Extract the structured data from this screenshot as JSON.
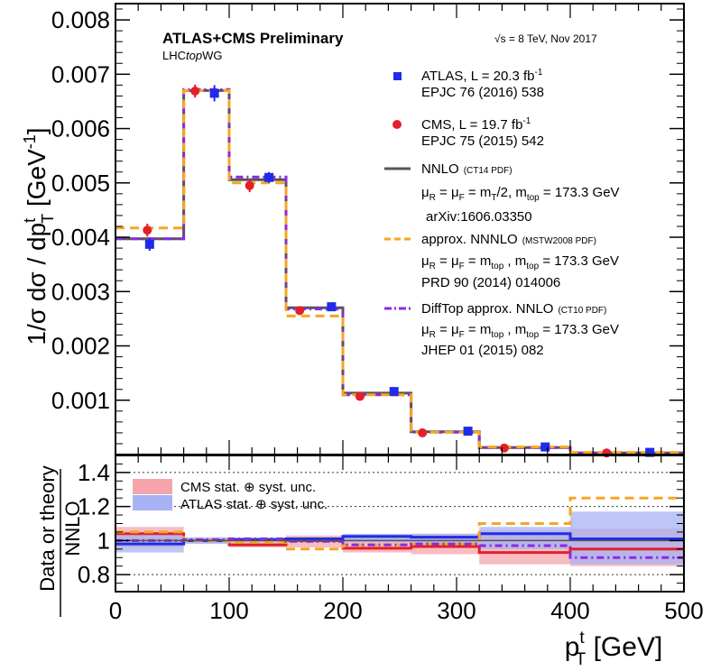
{
  "chart_data": [
    {
      "type": "line",
      "panel": "main",
      "header": {
        "experiment": "ATLAS+CMS Preliminary",
        "group_prefix": "LHC",
        "group_italic": "top",
        "group_suffix": "WG",
        "energy_prefix": "√s",
        "energy_text": " = 8 TeV, Nov 2017"
      },
      "ylabel": "1/σ dσ / dp",
      "ylabel_sub": "T",
      "ylabel_sup": "t",
      "ylabel_unit": " [GeV",
      "ylabel_unit_sup": "-1",
      "ylabel_close": "]",
      "ylim": [
        0,
        0.0083
      ],
      "yticks": [
        0.001,
        0.002,
        0.003,
        0.004,
        0.005,
        0.006,
        0.007,
        0.008
      ],
      "ytick_labels": [
        "0.001",
        "0.002",
        "0.003",
        "0.004",
        "0.005",
        "0.006",
        "0.007",
        "0.008"
      ],
      "xlim": [
        0,
        500
      ],
      "bin_edges": [
        0,
        60,
        100,
        150,
        200,
        260,
        320,
        400,
        500
      ],
      "series": [
        {
          "name": "ATLAS",
          "kind": "points",
          "marker": "square",
          "color": "#1f2be8",
          "x": [
            30,
            87,
            135,
            190,
            245,
            310,
            378,
            470
          ],
          "y": [
            0.00387,
            0.00665,
            0.0051,
            0.00272,
            0.00116,
            0.00043,
            0.00014,
            4e-05
          ],
          "err": [
            0.00012,
            0.00015,
            0.0001,
            5e-05,
            3e-05,
            2e-05,
            1e-05,
            5e-06
          ]
        },
        {
          "name": "CMS",
          "kind": "points",
          "marker": "circle",
          "color": "#e3202a",
          "x": [
            28,
            70,
            118,
            162,
            215,
            270,
            342,
            432
          ],
          "y": [
            0.00413,
            0.00669,
            0.00495,
            0.00265,
            0.00107,
            0.0004,
            0.00012,
            3e-05
          ],
          "err": [
            0.00012,
            0.00012,
            0.00012,
            7e-05,
            3e-05,
            2e-05,
            1e-05,
            5e-06
          ]
        },
        {
          "name": "NNLO",
          "kind": "step",
          "color": "#555555",
          "dash": "",
          "values": [
            0.00397,
            0.0067,
            0.00506,
            0.0027,
            0.00113,
            0.00042,
            0.00013,
            3e-05
          ]
        },
        {
          "name": "approx. NNNLO",
          "kind": "step",
          "color": "#f5a623",
          "dash": "10,6",
          "values": [
            0.00417,
            0.0067,
            0.005,
            0.00255,
            0.0011,
            0.00041,
            0.00014,
            4e-05
          ]
        },
        {
          "name": "DiffTop approx. NNLO",
          "kind": "step",
          "color": "#8a2be2",
          "dash": "8,4,2,4",
          "values": [
            0.00397,
            0.00672,
            0.00511,
            0.00268,
            0.0011,
            0.00041,
            0.00013,
            3e-05
          ]
        }
      ],
      "legend": [
        {
          "line1": "ATLAS, L = 20.3 fb",
          "line1_sup": "-1",
          "line2": "EPJC 76 (2016) 538"
        },
        {
          "line1": "CMS, L = 19.7 fb",
          "line1_sup": "-1",
          "line2": "EPJC 75 (2015) 542"
        },
        {
          "line1": "NNLO",
          "line1_small": "(CT14 PDF)",
          "scale_sub1": "R",
          "scale_sub2": "F",
          "scale_rhs": "m",
          "scale_rhs_sub": "T",
          "scale_div": "/2",
          "scale_tail": ", m",
          "scale_tail_sub": "top",
          "scale_value": " = 173.3 GeV",
          "ref": "arXiv:1606.03350"
        },
        {
          "line1": "approx. NNNLO",
          "line1_small": "(MSTW2008 PDF)",
          "scale_sub1": "R",
          "scale_sub2": "F",
          "scale_rhs": "m",
          "scale_rhs_sub": "top",
          "scale_div": "",
          "scale_tail": " , m",
          "scale_tail_sub": "top",
          "scale_value": " = 173.3 GeV",
          "ref": "PRD 90 (2014) 014006"
        },
        {
          "line1": "DiffTop approx. NNLO",
          "line1_small": "(CT10 PDF)",
          "scale_sub1": "R",
          "scale_sub2": "F",
          "scale_rhs": "m",
          "scale_rhs_sub": "top",
          "scale_div": "",
          "scale_tail": " , m",
          "scale_tail_sub": "top",
          "scale_value": " = 173.3 GeV",
          "ref": "JHEP 01 (2015) 082"
        }
      ],
      "legend_placement": "right"
    },
    {
      "type": "line",
      "panel": "ratio",
      "ylabel_top": "Data or theory",
      "ylabel_bottom": "NNLO",
      "ylim": [
        0.7,
        1.5
      ],
      "yticks": [
        0.8,
        1.0,
        1.2,
        1.4
      ],
      "ytick_labels": [
        "0.8",
        "1",
        "1.2",
        "1.4"
      ],
      "reference_lines": [
        0.8,
        1.2,
        1.4
      ],
      "xlabel": "p",
      "xlabel_sup": "t",
      "xlabel_sub": "T",
      "xlabel_unit": " [GeV]",
      "xticks": [
        0,
        100,
        200,
        300,
        400,
        500
      ],
      "xtick_labels": [
        "0",
        "100",
        "200",
        "300",
        "400",
        "500"
      ],
      "bin_edges": [
        0,
        60,
        100,
        150,
        200,
        260,
        320,
        400,
        500
      ],
      "bands": [
        {
          "name": "CMS stat. ⊕ syst. unc.",
          "label": "CMS stat. ",
          "label_tail": " syst. unc.",
          "color": "#f6a5ad",
          "lo": [
            0.96,
            0.985,
            0.96,
            0.96,
            0.93,
            0.92,
            0.86,
            0.85
          ],
          "hi": [
            1.08,
            1.01,
            1.0,
            1.03,
            1.02,
            1.04,
            1.06,
            1.07
          ]
        },
        {
          "name": "ATLAS stat. ⊕ syst. unc.",
          "label": "ATLAS stat. ",
          "label_tail": " syst. unc.",
          "color": "#a7b3f3",
          "lo": [
            0.93,
            0.98,
            0.99,
            0.99,
            0.99,
            0.97,
            0.95,
            0.86
          ],
          "hi": [
            1.04,
            1.02,
            1.02,
            1.02,
            1.04,
            1.04,
            1.08,
            1.17
          ]
        }
      ],
      "series": [
        {
          "name": "CMS",
          "color": "#e3202a",
          "dash": "",
          "width": 3,
          "values": [
            1.04,
            1.0,
            0.975,
            1.0,
            0.955,
            0.965,
            0.93,
            0.95
          ]
        },
        {
          "name": "ATLAS",
          "color": "#1f2be8",
          "dash": "",
          "width": 3,
          "values": [
            0.98,
            1.0,
            1.005,
            1.01,
            1.025,
            1.02,
            1.04,
            1.01
          ]
        },
        {
          "name": "approx. NNNLO",
          "color": "#f5a623",
          "dash": "10,6",
          "width": 3,
          "values": [
            1.05,
            1.0,
            0.99,
            0.95,
            0.975,
            0.98,
            1.1,
            1.25
          ]
        },
        {
          "name": "DiffTop approx. NNLO",
          "color": "#8a2be2",
          "dash": "8,4,2,4",
          "width": 3,
          "values": [
            1.0,
            1.005,
            1.01,
            0.995,
            0.975,
            0.98,
            0.97,
            0.9
          ]
        },
        {
          "name": "NNLO",
          "color": "#555555",
          "dash": "",
          "width": 1.5,
          "values": [
            1.0,
            1.0,
            1.0,
            1.0,
            1.0,
            1.0,
            1.0,
            1.0
          ]
        }
      ],
      "grid": false
    }
  ]
}
